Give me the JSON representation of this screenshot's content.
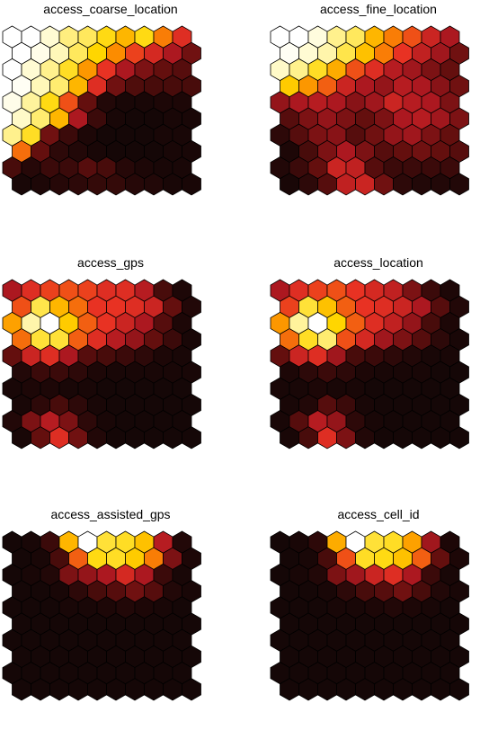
{
  "chart_data": [
    {
      "type": "heatmap",
      "title": "access_coarse_location",
      "rows": 10,
      "cols": 10,
      "layout": "hexagonal",
      "values": [
        [
          0.0,
          0.0,
          0.08,
          0.2,
          0.24,
          0.32,
          0.4,
          0.32,
          0.5,
          0.62
        ],
        [
          0.0,
          0.04,
          0.12,
          0.24,
          0.34,
          0.48,
          0.58,
          0.64,
          0.72,
          0.82
        ],
        [
          0.0,
          0.08,
          0.18,
          0.3,
          0.46,
          0.6,
          0.72,
          0.8,
          0.84,
          0.86
        ],
        [
          0.02,
          0.12,
          0.22,
          0.4,
          0.62,
          0.82,
          0.87,
          0.88,
          0.88,
          0.88
        ],
        [
          0.04,
          0.16,
          0.32,
          0.56,
          0.84,
          0.94,
          0.96,
          0.96,
          0.95,
          0.95
        ],
        [
          0.1,
          0.22,
          0.4,
          0.72,
          0.9,
          0.96,
          0.97,
          0.97,
          0.96,
          0.96
        ],
        [
          0.18,
          0.3,
          0.82,
          0.9,
          0.95,
          0.97,
          0.97,
          0.97,
          0.96,
          0.96
        ],
        [
          0.52,
          0.84,
          0.92,
          0.94,
          0.96,
          0.97,
          0.97,
          0.97,
          0.96,
          0.96
        ],
        [
          0.88,
          0.93,
          0.9,
          0.9,
          0.86,
          0.88,
          0.93,
          0.95,
          0.96,
          0.96
        ],
        [
          0.96,
          0.95,
          0.93,
          0.92,
          0.91,
          0.91,
          0.93,
          0.94,
          0.96,
          0.96
        ]
      ]
    },
    {
      "type": "heatmap",
      "title": "access_fine_location",
      "rows": 10,
      "cols": 10,
      "layout": "hexagonal",
      "values": [
        [
          0.0,
          0.0,
          0.06,
          0.18,
          0.24,
          0.4,
          0.5,
          0.56,
          0.66,
          0.72
        ],
        [
          0.02,
          0.08,
          0.14,
          0.26,
          0.38,
          0.5,
          0.6,
          0.68,
          0.74,
          0.82
        ],
        [
          0.1,
          0.18,
          0.3,
          0.42,
          0.56,
          0.62,
          0.7,
          0.74,
          0.8,
          0.84
        ],
        [
          0.36,
          0.46,
          0.54,
          0.66,
          0.72,
          0.76,
          0.7,
          0.72,
          0.78,
          0.82
        ],
        [
          0.76,
          0.72,
          0.7,
          0.72,
          0.78,
          0.74,
          0.66,
          0.7,
          0.72,
          0.8
        ],
        [
          0.86,
          0.8,
          0.76,
          0.8,
          0.84,
          0.8,
          0.72,
          0.7,
          0.74,
          0.8
        ],
        [
          0.92,
          0.86,
          0.8,
          0.78,
          0.86,
          0.82,
          0.76,
          0.74,
          0.8,
          0.84
        ],
        [
          0.95,
          0.88,
          0.8,
          0.72,
          0.8,
          0.86,
          0.84,
          0.82,
          0.84,
          0.86
        ],
        [
          0.94,
          0.9,
          0.84,
          0.66,
          0.68,
          0.86,
          0.9,
          0.9,
          0.9,
          0.9
        ],
        [
          0.96,
          0.92,
          0.86,
          0.68,
          0.66,
          0.82,
          0.92,
          0.94,
          0.94,
          0.94
        ]
      ]
    },
    {
      "type": "heatmap",
      "title": "access_gps",
      "rows": 10,
      "cols": 10,
      "layout": "hexagonal",
      "values": [
        [
          0.72,
          0.62,
          0.58,
          0.56,
          0.58,
          0.62,
          0.62,
          0.7,
          0.88,
          0.95
        ],
        [
          0.56,
          0.26,
          0.4,
          0.52,
          0.6,
          0.6,
          0.62,
          0.66,
          0.84,
          0.94
        ],
        [
          0.44,
          0.14,
          0.0,
          0.36,
          0.54,
          0.6,
          0.66,
          0.72,
          0.86,
          0.95
        ],
        [
          0.52,
          0.28,
          0.28,
          0.54,
          0.62,
          0.7,
          0.76,
          0.84,
          0.9,
          0.96
        ],
        [
          0.84,
          0.66,
          0.62,
          0.72,
          0.86,
          0.88,
          0.9,
          0.92,
          0.95,
          0.96
        ],
        [
          0.94,
          0.9,
          0.9,
          0.92,
          0.95,
          0.96,
          0.96,
          0.96,
          0.96,
          0.96
        ],
        [
          0.96,
          0.95,
          0.95,
          0.96,
          0.96,
          0.97,
          0.97,
          0.97,
          0.97,
          0.97
        ],
        [
          0.96,
          0.92,
          0.88,
          0.92,
          0.96,
          0.97,
          0.97,
          0.97,
          0.97,
          0.97
        ],
        [
          0.94,
          0.8,
          0.7,
          0.8,
          0.92,
          0.96,
          0.97,
          0.97,
          0.97,
          0.97
        ],
        [
          0.96,
          0.84,
          0.62,
          0.82,
          0.94,
          0.97,
          0.97,
          0.97,
          0.97,
          0.97
        ]
      ]
    },
    {
      "type": "heatmap",
      "title": "access_location",
      "rows": 10,
      "cols": 10,
      "layout": "hexagonal",
      "values": [
        [
          0.72,
          0.62,
          0.58,
          0.56,
          0.6,
          0.64,
          0.68,
          0.8,
          0.9,
          0.95
        ],
        [
          0.58,
          0.28,
          0.38,
          0.54,
          0.6,
          0.62,
          0.66,
          0.72,
          0.86,
          0.94
        ],
        [
          0.46,
          0.16,
          0.0,
          0.34,
          0.54,
          0.62,
          0.68,
          0.76,
          0.88,
          0.95
        ],
        [
          0.52,
          0.3,
          0.22,
          0.56,
          0.64,
          0.74,
          0.8,
          0.86,
          0.92,
          0.96
        ],
        [
          0.84,
          0.66,
          0.62,
          0.74,
          0.88,
          0.9,
          0.92,
          0.94,
          0.96,
          0.96
        ],
        [
          0.95,
          0.92,
          0.9,
          0.92,
          0.95,
          0.96,
          0.96,
          0.96,
          0.97,
          0.97
        ],
        [
          0.96,
          0.96,
          0.95,
          0.96,
          0.96,
          0.97,
          0.97,
          0.97,
          0.97,
          0.97
        ],
        [
          0.96,
          0.94,
          0.86,
          0.9,
          0.96,
          0.97,
          0.97,
          0.97,
          0.97,
          0.97
        ],
        [
          0.96,
          0.86,
          0.7,
          0.76,
          0.92,
          0.96,
          0.97,
          0.97,
          0.97,
          0.97
        ],
        [
          0.96,
          0.88,
          0.62,
          0.8,
          0.94,
          0.97,
          0.97,
          0.97,
          0.97,
          0.97
        ]
      ]
    },
    {
      "type": "heatmap",
      "title": "access_assisted_gps",
      "rows": 10,
      "cols": 10,
      "layout": "hexagonal",
      "values": [
        [
          0.97,
          0.96,
          0.9,
          0.4,
          0.0,
          0.28,
          0.3,
          0.38,
          0.7,
          0.94
        ],
        [
          0.97,
          0.96,
          0.88,
          0.54,
          0.32,
          0.3,
          0.36,
          0.5,
          0.8,
          0.95
        ],
        [
          0.97,
          0.96,
          0.94,
          0.8,
          0.76,
          0.72,
          0.64,
          0.72,
          0.9,
          0.96
        ],
        [
          0.97,
          0.97,
          0.96,
          0.92,
          0.88,
          0.86,
          0.82,
          0.86,
          0.94,
          0.96
        ],
        [
          0.97,
          0.97,
          0.97,
          0.96,
          0.96,
          0.95,
          0.94,
          0.95,
          0.96,
          0.97
        ],
        [
          0.97,
          0.97,
          0.97,
          0.97,
          0.97,
          0.97,
          0.97,
          0.97,
          0.97,
          0.97
        ],
        [
          0.97,
          0.97,
          0.97,
          0.97,
          0.97,
          0.97,
          0.97,
          0.97,
          0.97,
          0.97
        ],
        [
          0.97,
          0.97,
          0.97,
          0.97,
          0.97,
          0.97,
          0.97,
          0.97,
          0.97,
          0.97
        ],
        [
          0.97,
          0.97,
          0.97,
          0.97,
          0.97,
          0.97,
          0.97,
          0.97,
          0.97,
          0.97
        ],
        [
          0.97,
          0.97,
          0.97,
          0.97,
          0.97,
          0.97,
          0.97,
          0.97,
          0.97,
          0.97
        ]
      ]
    },
    {
      "type": "heatmap",
      "title": "access_cell_id",
      "rows": 10,
      "cols": 10,
      "layout": "hexagonal",
      "values": [
        [
          0.97,
          0.96,
          0.92,
          0.42,
          0.0,
          0.28,
          0.3,
          0.44,
          0.74,
          0.95
        ],
        [
          0.97,
          0.96,
          0.88,
          0.56,
          0.3,
          0.32,
          0.38,
          0.54,
          0.84,
          0.95
        ],
        [
          0.97,
          0.96,
          0.94,
          0.8,
          0.74,
          0.66,
          0.62,
          0.72,
          0.9,
          0.96
        ],
        [
          0.97,
          0.97,
          0.96,
          0.92,
          0.88,
          0.86,
          0.82,
          0.88,
          0.94,
          0.96
        ],
        [
          0.97,
          0.97,
          0.97,
          0.96,
          0.96,
          0.95,
          0.94,
          0.95,
          0.96,
          0.97
        ],
        [
          0.97,
          0.97,
          0.97,
          0.97,
          0.97,
          0.97,
          0.97,
          0.97,
          0.97,
          0.97
        ],
        [
          0.97,
          0.97,
          0.97,
          0.97,
          0.97,
          0.97,
          0.97,
          0.97,
          0.97,
          0.97
        ],
        [
          0.97,
          0.97,
          0.97,
          0.97,
          0.97,
          0.97,
          0.97,
          0.97,
          0.97,
          0.97
        ],
        [
          0.97,
          0.97,
          0.97,
          0.97,
          0.97,
          0.97,
          0.97,
          0.97,
          0.97,
          0.97
        ],
        [
          0.97,
          0.97,
          0.97,
          0.97,
          0.97,
          0.97,
          0.97,
          0.97,
          0.97,
          0.97
        ]
      ]
    }
  ]
}
